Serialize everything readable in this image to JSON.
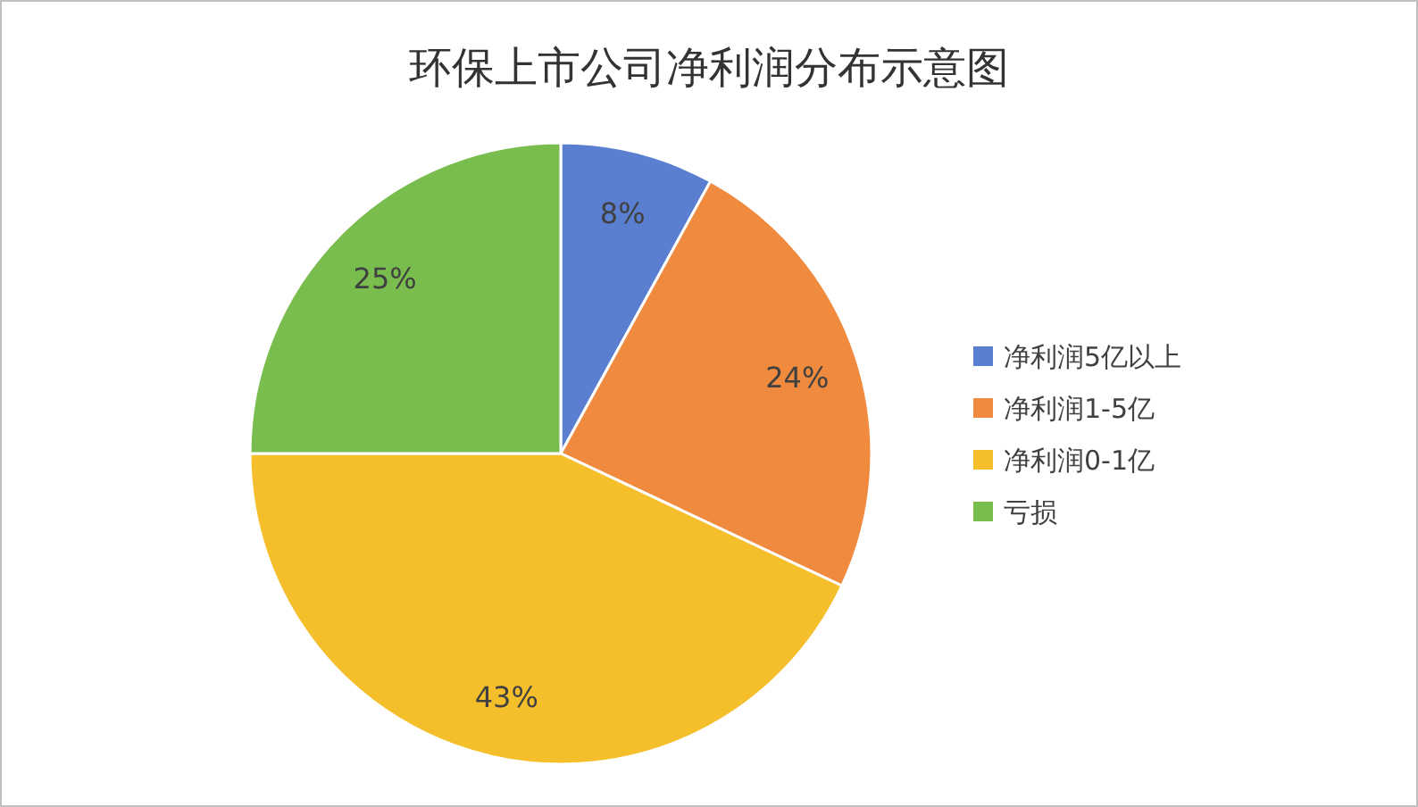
{
  "chart_data": {
    "type": "pie",
    "title": "环保上市公司净利润分布示意图",
    "categories": [
      "净利润5亿以上",
      "净利润1-5亿",
      "净利润0-1亿",
      "亏损"
    ],
    "values": [
      8,
      24,
      43,
      25
    ],
    "colors": [
      "#5b7fd0",
      "#ef8a3e",
      "#f4bf2a",
      "#79bd4f"
    ],
    "value_labels": [
      "8%",
      "24%",
      "43%",
      "25%"
    ],
    "legend": "right"
  }
}
